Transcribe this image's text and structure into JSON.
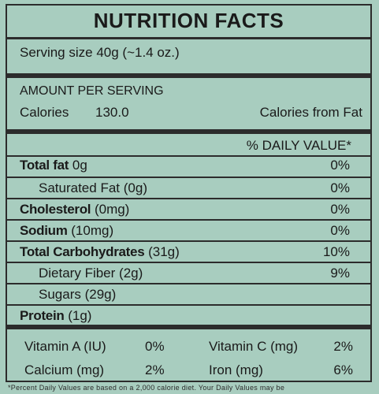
{
  "title": "NUTRITION FACTS",
  "serving": "Serving size 40g (~1.4 oz.)",
  "amount_header": "AMOUNT PER SERVING",
  "calories_label": "Calories",
  "calories_value": "130.0",
  "calories_from_fat_label": "Calories from Fat",
  "daily_value_header": "% DAILY VALUE*",
  "nutrients": [
    {
      "name": "Total fat",
      "amount": "0g",
      "dv": "0%"
    },
    {
      "name": "Saturated Fat",
      "amount": "(0g)",
      "dv": "0%"
    },
    {
      "name": "Cholesterol",
      "amount": "(0mg)",
      "dv": "0%"
    },
    {
      "name": "Sodium",
      "amount": "(10mg)",
      "dv": "0%"
    },
    {
      "name": "Total Carbohydrates",
      "amount": "(31g)",
      "dv": "10%"
    },
    {
      "name": "Dietary Fiber",
      "amount": "(2g)",
      "dv": "9%"
    },
    {
      "name": "Sugars",
      "amount": "(29g)",
      "dv": ""
    },
    {
      "name": "Protein",
      "amount": "(1g)",
      "dv": ""
    }
  ],
  "vitamins": [
    {
      "name": "Vitamin A (IU)",
      "dv": "0%"
    },
    {
      "name": "Vitamin C (mg)",
      "dv": "2%"
    },
    {
      "name": "Calcium (mg)",
      "dv": "2%"
    },
    {
      "name": "Iron (mg)",
      "dv": "6%"
    }
  ],
  "footer": "*Percent Daily Values are based on a 2,000 calorie diet. Your Daily Values may be"
}
